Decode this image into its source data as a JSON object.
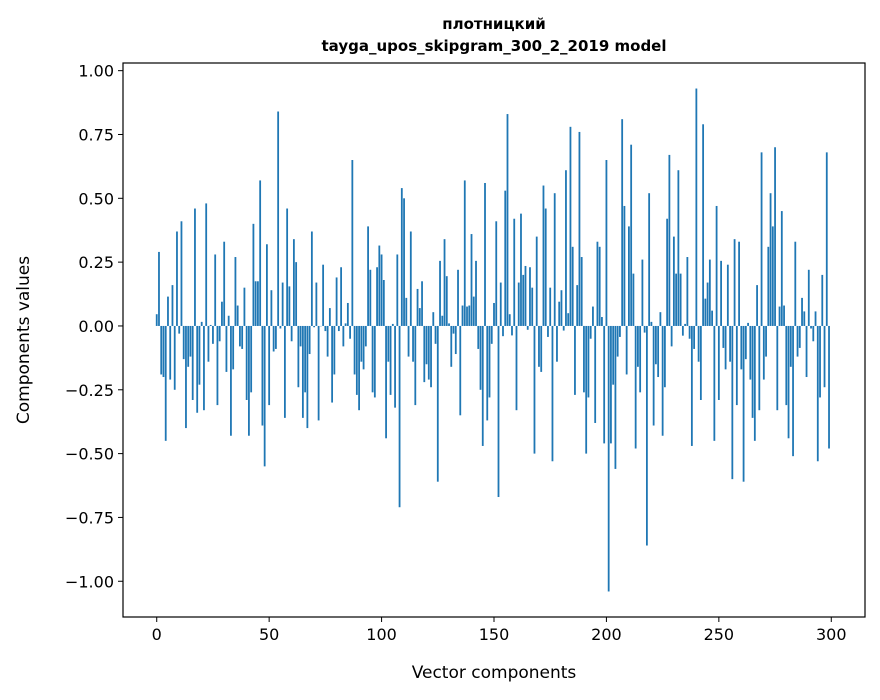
{
  "chart_data": {
    "type": "bar",
    "title_line1": "плотницкий",
    "title_line2": "tayga_upos_skipgram_300_2_2019 model",
    "xlabel": "Vector components",
    "ylabel": "Components values",
    "xlim": [
      -15,
      315
    ],
    "ylim": [
      -1.14,
      1.03
    ],
    "xticks": [
      "0",
      "50",
      "100",
      "150",
      "200",
      "250",
      "300"
    ],
    "xtick_values": [
      0,
      50,
      100,
      150,
      200,
      250,
      300
    ],
    "yticks": [
      "−1.00",
      "−0.75",
      "−0.50",
      "−0.25",
      "0.00",
      "0.25",
      "0.50",
      "0.75",
      "1.00"
    ],
    "ytick_values": [
      -1.0,
      -0.75,
      -0.5,
      -0.25,
      0.0,
      0.25,
      0.5,
      0.75,
      1.0
    ],
    "color": "#1f77b4",
    "values": [
      0.046,
      0.29,
      -0.19,
      -0.2,
      -0.45,
      0.115,
      -0.21,
      0.16,
      -0.25,
      0.37,
      -0.03,
      0.41,
      -0.13,
      -0.4,
      -0.16,
      -0.12,
      -0.29,
      0.46,
      -0.34,
      -0.23,
      0.016,
      -0.33,
      0.48,
      -0.14,
      0.004,
      -0.07,
      0.28,
      -0.31,
      -0.06,
      0.095,
      0.33,
      -0.18,
      0.04,
      -0.43,
      -0.17,
      0.27,
      0.08,
      -0.08,
      -0.09,
      0.15,
      -0.29,
      -0.43,
      -0.26,
      0.4,
      0.175,
      0.175,
      0.57,
      -0.39,
      -0.55,
      0.32,
      -0.31,
      0.14,
      -0.1,
      -0.09,
      0.84,
      -0.01,
      0.17,
      -0.36,
      0.46,
      0.155,
      -0.06,
      0.34,
      0.25,
      -0.24,
      -0.08,
      -0.36,
      -0.26,
      -0.4,
      -0.11,
      0.37,
      -0.005,
      0.17,
      -0.37,
      0.0,
      0.24,
      -0.02,
      -0.12,
      0.07,
      -0.3,
      -0.19,
      0.19,
      -0.02,
      0.23,
      -0.08,
      0.01,
      0.09,
      -0.05,
      0.65,
      -0.19,
      -0.27,
      -0.33,
      -0.14,
      -0.17,
      -0.08,
      0.39,
      0.22,
      -0.26,
      -0.28,
      0.23,
      0.315,
      0.28,
      0.18,
      -0.44,
      -0.14,
      -0.27,
      0.008,
      -0.32,
      0.28,
      -0.71,
      0.54,
      0.5,
      0.11,
      -0.12,
      0.37,
      -0.14,
      -0.31,
      0.145,
      0.07,
      0.175,
      -0.22,
      -0.15,
      -0.21,
      -0.24,
      0.054,
      -0.07,
      -0.61,
      0.255,
      0.04,
      0.34,
      0.195,
      0.01,
      -0.16,
      -0.03,
      -0.11,
      0.22,
      -0.35,
      0.08,
      0.57,
      0.076,
      0.08,
      0.36,
      0.115,
      0.255,
      -0.09,
      -0.25,
      -0.47,
      0.56,
      -0.37,
      -0.28,
      -0.07,
      0.09,
      0.41,
      -0.67,
      0.17,
      -0.04,
      0.53,
      0.83,
      0.046,
      -0.037,
      0.42,
      -0.33,
      0.17,
      0.44,
      0.2,
      0.235,
      -0.015,
      0.23,
      0.15,
      -0.5,
      0.35,
      -0.16,
      -0.18,
      0.55,
      0.46,
      -0.043,
      0.15,
      -0.53,
      0.52,
      -0.14,
      0.095,
      0.14,
      -0.018,
      0.61,
      0.05,
      0.78,
      0.31,
      -0.27,
      0.16,
      0.76,
      0.27,
      -0.26,
      -0.5,
      -0.28,
      -0.05,
      0.076,
      -0.38,
      0.33,
      0.31,
      0.035,
      -0.46,
      0.65,
      -1.04,
      -0.46,
      -0.23,
      -0.56,
      -0.12,
      -0.043,
      0.81,
      0.47,
      -0.19,
      0.39,
      0.71,
      0.205,
      -0.48,
      -0.16,
      -0.26,
      0.26,
      -0.026,
      -0.86,
      0.52,
      0.016,
      -0.39,
      -0.15,
      -0.2,
      0.054,
      -0.43,
      -0.24,
      0.42,
      0.67,
      -0.08,
      0.35,
      0.205,
      0.61,
      0.205,
      -0.038,
      0.008,
      0.27,
      -0.05,
      -0.47,
      -0.09,
      0.93,
      -0.14,
      -0.29,
      0.79,
      0.107,
      0.17,
      0.26,
      0.06,
      -0.45,
      0.47,
      -0.29,
      0.255,
      -0.086,
      -0.17,
      0.24,
      -0.14,
      -0.6,
      0.34,
      -0.31,
      0.33,
      -0.17,
      -0.61,
      -0.13,
      0.012,
      -0.21,
      -0.36,
      -0.45,
      0.16,
      -0.33,
      0.68,
      -0.21,
      -0.12,
      0.31,
      0.52,
      0.39,
      0.7,
      -0.33,
      0.076,
      0.45,
      0.08,
      -0.31,
      -0.44,
      -0.16,
      -0.51,
      0.33,
      -0.12,
      -0.086,
      0.11,
      0.057,
      -0.2,
      0.22,
      -0.01,
      -0.06,
      0.057,
      -0.53,
      -0.28,
      0.2,
      -0.24,
      0.68,
      -0.48
    ]
  }
}
